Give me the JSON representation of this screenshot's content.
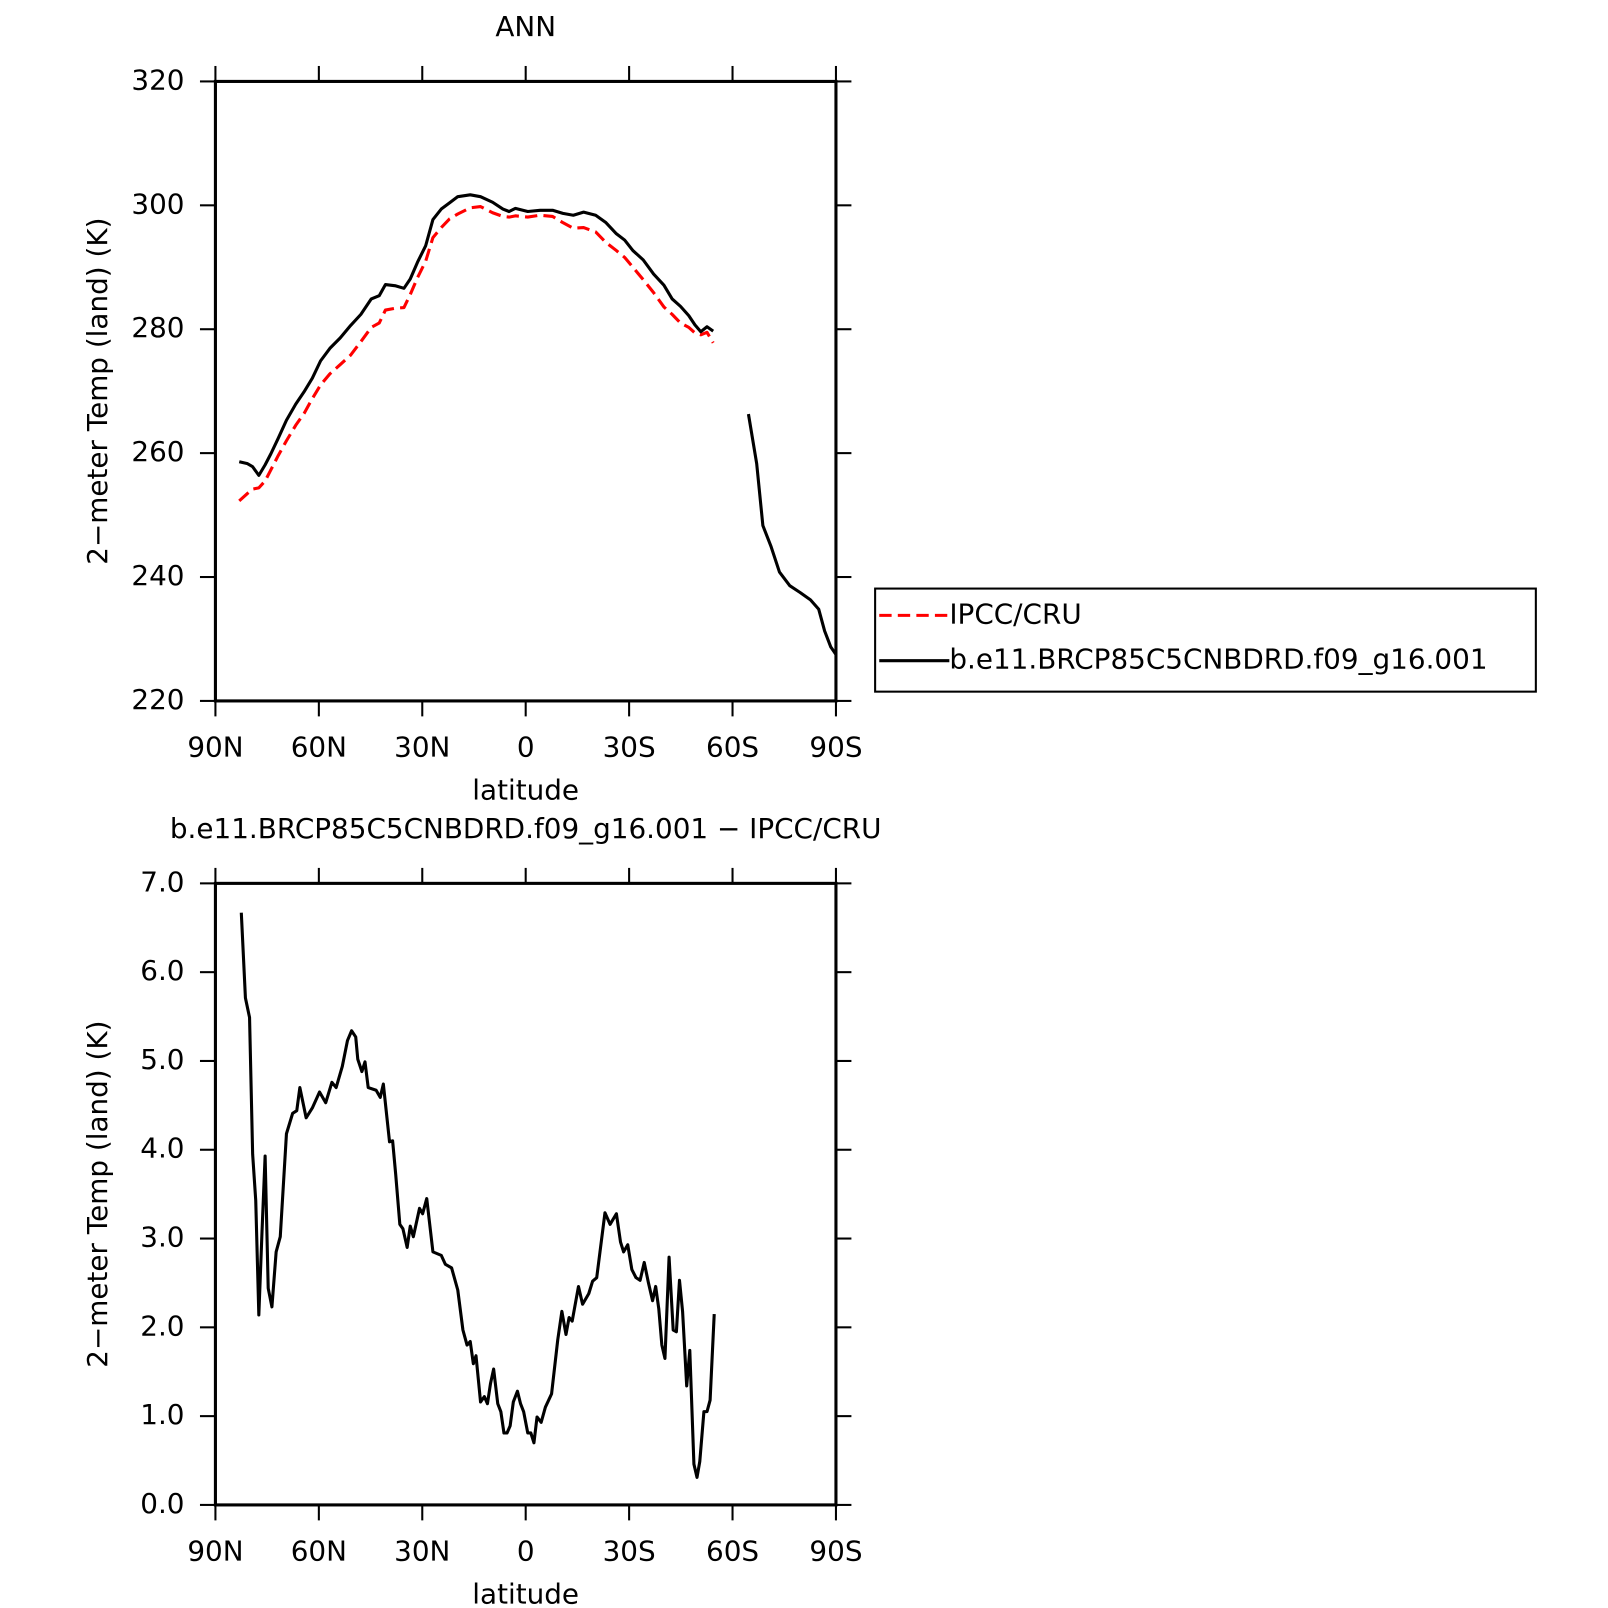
{
  "chart_data": [
    {
      "type": "line",
      "title": "ANN",
      "xlabel": "latitude",
      "ylabel": "2−meter Temp (land) (K)",
      "x": [
        83.1,
        80.7,
        79.2,
        77.4,
        75.6,
        73.9,
        71.8,
        69.4,
        66.7,
        64.3,
        61.9,
        59.5,
        56.8,
        53.8,
        50.8,
        47.8,
        44.8,
        42.5,
        40.7,
        37.7,
        35.3,
        33.5,
        31.4,
        29.0,
        26.9,
        24.5,
        22.1,
        19.7,
        16.1,
        13.1,
        9.6,
        6.6,
        4.8,
        3.0,
        -0.6,
        -4.2,
        -7.8,
        -10.8,
        -13.8,
        -16.8,
        -20.3,
        -23.3,
        -26.3,
        -28.7,
        -31.1,
        -34.1,
        -37.1,
        -40.1,
        -42.5,
        -44.9,
        -47.3,
        -49.1,
        -50.8,
        -52.6,
        -54.4,
        -60,
        -64.6,
        -67.0,
        -68.8,
        -71.2,
        -73.6,
        -76.6,
        -79.6,
        -82.6,
        -85.0,
        -86.7,
        -88.5,
        -90
      ],
      "series": [
        {
          "name": "IPCC/CRU",
          "color": "#ff0000",
          "line_style": "dashed",
          "values": [
            252.3,
            253.5,
            254.2,
            254.4,
            255.5,
            257.3,
            259.6,
            262.0,
            264.5,
            266.4,
            268.8,
            271.0,
            272.8,
            274.3,
            275.8,
            278.0,
            280.3,
            281.0,
            283.1,
            283.4,
            283.5,
            285.6,
            288.3,
            291.0,
            294.8,
            296.4,
            297.8,
            298.6,
            299.6,
            299.8,
            298.8,
            298.2,
            298.1,
            298.3,
            298.1,
            298.4,
            298.2,
            297.2,
            296.3,
            296.4,
            295.7,
            294.0,
            292.7,
            291.6,
            290.0,
            288.0,
            285.9,
            283.6,
            282.4,
            281.0,
            280.3,
            279.4,
            279.1,
            279.5,
            277.8,
            null,
            null,
            null,
            null,
            null,
            null,
            null,
            null,
            null,
            null,
            null,
            null,
            null
          ]
        },
        {
          "name": "b.e11.BRCP85C5CNBDRD.f09_g16.001",
          "color": "#000000",
          "line_style": "solid",
          "values": [
            258.6,
            258.3,
            257.8,
            256.4,
            258.1,
            259.9,
            262.4,
            265.3,
            267.9,
            269.9,
            272.1,
            274.9,
            276.9,
            278.6,
            280.6,
            282.4,
            284.9,
            285.4,
            287.2,
            287.0,
            286.6,
            288.1,
            290.8,
            293.5,
            297.7,
            299.4,
            300.4,
            301.4,
            301.7,
            301.4,
            300.5,
            299.4,
            299.0,
            299.5,
            299.0,
            299.2,
            299.2,
            298.7,
            298.4,
            298.9,
            298.4,
            297.2,
            295.4,
            294.4,
            292.7,
            291.2,
            288.9,
            287.1,
            284.9,
            283.7,
            282.2,
            280.7,
            279.6,
            280.4,
            279.7,
            null,
            266.3,
            258.3,
            248.3,
            244.9,
            240.8,
            238.6,
            237.5,
            236.3,
            234.8,
            231.3,
            228.7,
            227.5
          ]
        }
      ],
      "xlim": [
        90,
        -90
      ],
      "xticks": [
        {
          "value": 90,
          "label": "90N"
        },
        {
          "value": 60,
          "label": "60N"
        },
        {
          "value": 30,
          "label": "30N"
        },
        0,
        {
          "value": -30,
          "label": "30S"
        },
        {
          "value": -60,
          "label": "60S"
        },
        {
          "value": -90,
          "label": "90S"
        }
      ],
      "ylim": [
        220,
        320
      ],
      "yticks": [
        220,
        240,
        260,
        280,
        300,
        320
      ],
      "legend": "outside right"
    },
    {
      "type": "line",
      "title": "b.e11.BRCP85C5CNBDRD.f09_g16.001 − IPCC/CRU",
      "xlabel": "latitude",
      "ylabel": "2−meter Temp (land) (K)",
      "x": [
        82.5,
        81.3,
        80.1,
        79.2,
        78.3,
        77.4,
        76.5,
        75.6,
        74.7,
        73.6,
        72.4,
        71.2,
        69.4,
        67.6,
        66.4,
        65.5,
        63.7,
        61.9,
        59.8,
        58.0,
        56.2,
        55.0,
        53.2,
        51.7,
        50.5,
        49.3,
        48.7,
        47.5,
        46.6,
        45.7,
        43.4,
        42.2,
        41.3,
        39.5,
        38.6,
        37.7,
        36.5,
        35.6,
        34.4,
        33.5,
        32.6,
        30.8,
        29.9,
        28.7,
        26.9,
        24.5,
        23.3,
        21.5,
        19.7,
        18.2,
        17.0,
        16.1,
        15.2,
        14.4,
        13.1,
        12.0,
        11.1,
        10.2,
        9.3,
        8.1,
        7.2,
        6.3,
        5.4,
        4.5,
        3.6,
        2.4,
        1.5,
        0.6,
        -0.6,
        -1.5,
        -2.4,
        -3.3,
        -4.5,
        -5.7,
        -7.5,
        -9.3,
        -10.5,
        -11.7,
        -12.6,
        -13.5,
        -15.3,
        -16.5,
        -18.3,
        -19.4,
        -20.6,
        -23.0,
        -24.5,
        -26.3,
        -27.5,
        -28.4,
        -29.6,
        -30.8,
        -32.0,
        -33.2,
        -34.4,
        -35.6,
        -36.8,
        -37.7,
        -38.6,
        -39.5,
        -40.4,
        -41.6,
        -42.8,
        -43.7,
        -44.6,
        -45.5,
        -46.7,
        -47.6,
        -48.8,
        -49.7,
        -50.5,
        -51.7,
        -52.6,
        -53.5,
        -54.7
      ],
      "values": [
        6.67,
        5.71,
        5.49,
        3.95,
        3.43,
        2.14,
        3.08,
        3.93,
        2.44,
        2.23,
        2.85,
        3.02,
        4.18,
        4.41,
        4.44,
        4.7,
        4.36,
        4.47,
        4.65,
        4.53,
        4.76,
        4.7,
        4.94,
        5.23,
        5.34,
        5.27,
        5.02,
        4.88,
        4.99,
        4.7,
        4.67,
        4.59,
        4.74,
        4.09,
        4.1,
        3.72,
        3.16,
        3.11,
        2.9,
        3.14,
        3.02,
        3.34,
        3.28,
        3.45,
        2.85,
        2.81,
        2.71,
        2.67,
        2.42,
        1.97,
        1.8,
        1.84,
        1.59,
        1.68,
        1.16,
        1.22,
        1.14,
        1.37,
        1.53,
        1.14,
        1.05,
        0.81,
        0.81,
        0.89,
        1.16,
        1.28,
        1.14,
        1.05,
        0.81,
        0.81,
        0.7,
        0.99,
        0.93,
        1.1,
        1.25,
        1.86,
        2.18,
        1.92,
        2.11,
        2.07,
        2.46,
        2.26,
        2.38,
        2.52,
        2.56,
        3.29,
        3.16,
        3.28,
        2.96,
        2.85,
        2.93,
        2.65,
        2.56,
        2.53,
        2.73,
        2.5,
        2.3,
        2.46,
        2.21,
        1.8,
        1.65,
        2.79,
        1.97,
        1.95,
        2.53,
        2.18,
        1.34,
        1.74,
        0.46,
        0.31,
        0.49,
        1.05,
        1.05,
        1.18,
        2.15
      ],
      "color": "#000000",
      "xlim": [
        90,
        -90
      ],
      "xticks": [
        {
          "value": 90,
          "label": "90N"
        },
        {
          "value": 60,
          "label": "60N"
        },
        {
          "value": 30,
          "label": "30N"
        },
        0,
        {
          "value": -30,
          "label": "30S"
        },
        {
          "value": -60,
          "label": "60S"
        },
        {
          "value": -90,
          "label": "90S"
        }
      ],
      "ylim": [
        0,
        7
      ],
      "yticks": [
        {
          "value": 0,
          "label": "0.0"
        },
        {
          "value": 1,
          "label": "1.0"
        },
        {
          "value": 2,
          "label": "2.0"
        },
        {
          "value": 3,
          "label": "3.0"
        },
        {
          "value": 4,
          "label": "4.0"
        },
        {
          "value": 5,
          "label": "5.0"
        },
        {
          "value": 6,
          "label": "6.0"
        },
        {
          "value": 7,
          "label": "7.0"
        }
      ]
    }
  ]
}
